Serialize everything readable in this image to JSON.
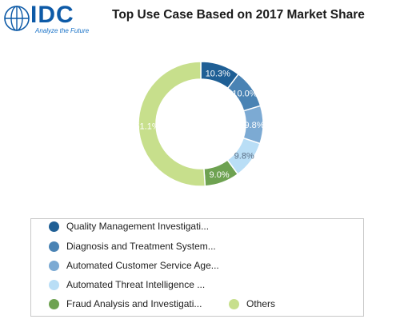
{
  "header": {
    "logo_text": "IDC",
    "logo_tagline": "Analyze the Future",
    "title": "Top Use Case Based on 2017 Market Share"
  },
  "colors": {
    "brand": "#0d5aa7",
    "legend_border": "#c8c8c8"
  },
  "chart_data": {
    "type": "pie",
    "variant": "donut",
    "title": "Top Use Case Based on 2017 Market Share",
    "categories": [
      "Quality Management Investigati...",
      "Diagnosis and Treatment System...",
      "Automated Customer Service Age...",
      "Automated Threat Intelligence ...",
      "Fraud Analysis and Investigati...",
      "Others"
    ],
    "values": [
      10.3,
      10.0,
      9.8,
      9.8,
      9.0,
      51.1
    ],
    "value_labels": [
      "10.3%",
      "10.0%",
      "9.8%",
      "9.8%",
      "9.0%",
      "51.1%"
    ],
    "colors": [
      "#1f5f95",
      "#4a83b4",
      "#7caad3",
      "#b9def6",
      "#6ea251",
      "#c7df8c"
    ],
    "legend_position": "bottom",
    "legend": {
      "items": [
        {
          "label": "Quality Management Investigati...",
          "color": "#1f5f95"
        },
        {
          "label": "Diagnosis and Treatment System...",
          "color": "#4a83b4"
        },
        {
          "label": "Automated Customer Service Age...",
          "color": "#7caad3"
        },
        {
          "label": "Automated Threat Intelligence ...",
          "color": "#b9def6"
        },
        {
          "label": "Fraud Analysis and Investigati...",
          "color": "#6ea251"
        },
        {
          "label": "Others",
          "color": "#c7df8c"
        }
      ]
    }
  }
}
